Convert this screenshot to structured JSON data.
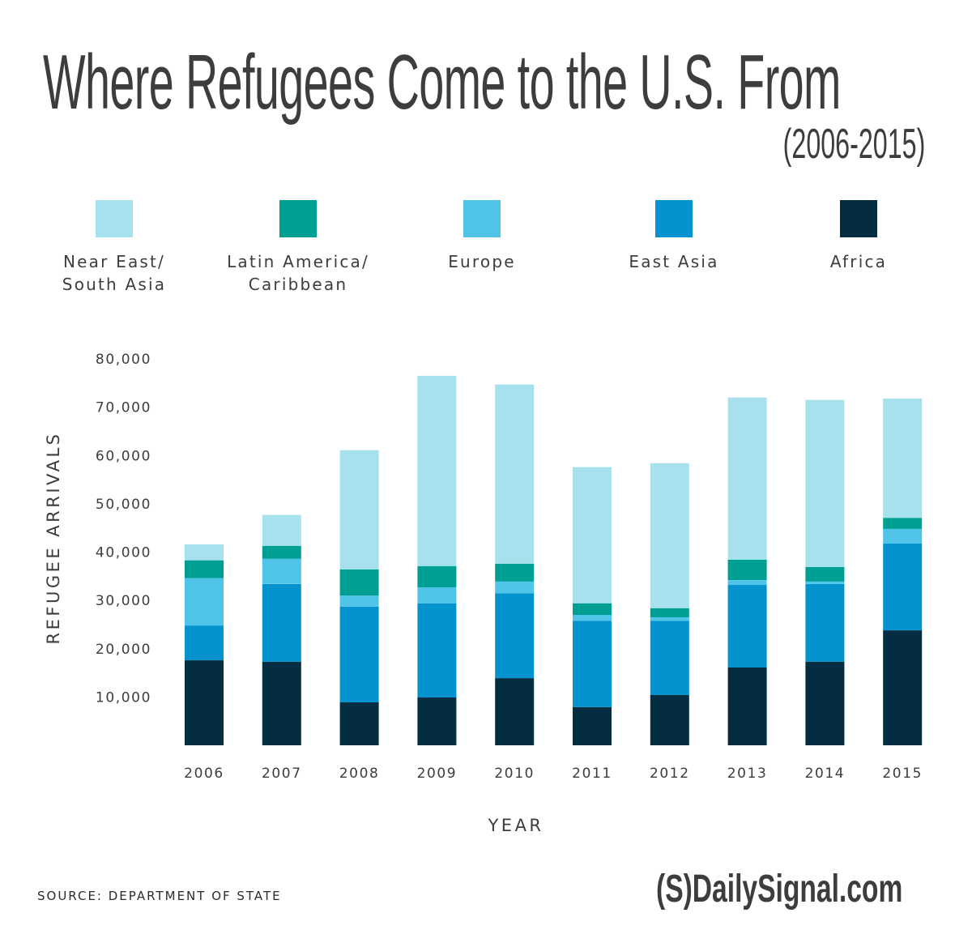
{
  "header": {
    "title": "Where Refugees Come to the U.S. From",
    "subtitle": "(2006-2015)"
  },
  "legend": [
    {
      "label": "Near East/\nSouth Asia",
      "color": "#a8e1ee"
    },
    {
      "label": "Latin America/\nCaribbean",
      "color": "#009f94"
    },
    {
      "label": "Europe",
      "color": "#50c4e8"
    },
    {
      "label": "East Asia",
      "color": "#0593d0"
    },
    {
      "label": "Africa",
      "color": "#042d42"
    }
  ],
  "chart_data": {
    "type": "bar",
    "stacked": true,
    "title": "Where Refugees Come to the U.S. From",
    "subtitle": "(2006-2015)",
    "xlabel": "YEAR",
    "ylabel": "REFUGEE ARRIVALS",
    "ylim": [
      0,
      80000
    ],
    "yticks": [
      10000,
      20000,
      30000,
      40000,
      50000,
      60000,
      70000,
      80000
    ],
    "ytick_labels": [
      "10,000",
      "20,000",
      "30,000",
      "40,000",
      "50,000",
      "60,000",
      "70,000",
      "80,000"
    ],
    "categories": [
      "2006",
      "2007",
      "2008",
      "2009",
      "2010",
      "2011",
      "2012",
      "2013",
      "2014",
      "2015"
    ],
    "grid": false,
    "legend_position": "top",
    "series": [
      {
        "name": "Africa",
        "color": "#042d42",
        "values": [
          17600,
          17300,
          8900,
          9900,
          13900,
          7900,
          10400,
          16100,
          17300,
          23800
        ]
      },
      {
        "name": "East Asia",
        "color": "#0593d0",
        "values": [
          7200,
          16100,
          19800,
          19500,
          17600,
          17900,
          15400,
          17100,
          16100,
          18000
        ]
      },
      {
        "name": "Europe",
        "color": "#50c4e8",
        "values": [
          9800,
          5200,
          2300,
          3300,
          2400,
          1200,
          700,
          1000,
          500,
          3000
        ]
      },
      {
        "name": "Latin America/Caribbean",
        "color": "#009f94",
        "values": [
          3700,
          2700,
          5400,
          4400,
          3700,
          2400,
          1900,
          4200,
          3000,
          2300
        ]
      },
      {
        "name": "Near East/South Asia",
        "color": "#a8e1ee",
        "values": [
          3300,
          6400,
          24700,
          39400,
          37100,
          28200,
          30000,
          33600,
          34600,
          24700
        ]
      }
    ]
  },
  "footer": {
    "source": "SOURCE: DEPARTMENT OF STATE",
    "logo_text": "(S)DailySignal.com"
  }
}
